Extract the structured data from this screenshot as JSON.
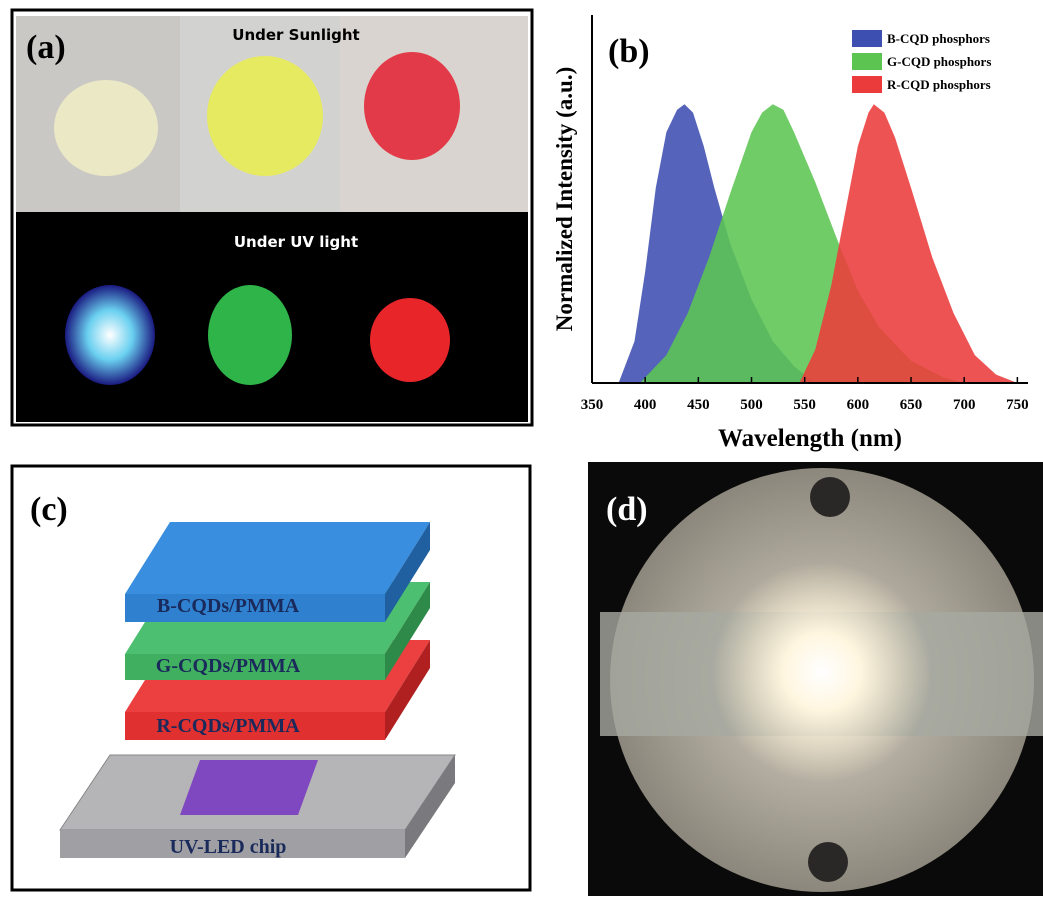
{
  "panel_a": {
    "label": "(a)",
    "top_caption": "Under Sunlight",
    "bottom_caption": "Under UV light"
  },
  "chart_data": {
    "type": "area",
    "label": "(b)",
    "xlabel": "Wavelength (nm)",
    "ylabel": "Normalized Intensity (a.u.)",
    "xlim": [
      350,
      760
    ],
    "xticks": [
      350,
      400,
      450,
      500,
      550,
      600,
      650,
      700,
      750
    ],
    "ylim": [
      0,
      1.32
    ],
    "legend": "upper right",
    "series": [
      {
        "name": "B-CQD phosphors",
        "color": "#3d4fb0",
        "x": [
          375,
          390,
          400,
          410,
          420,
          430,
          437,
          445,
          455,
          465,
          480,
          500,
          520,
          540,
          560
        ],
        "values": [
          0,
          0.15,
          0.4,
          0.7,
          0.9,
          0.98,
          1.0,
          0.97,
          0.85,
          0.7,
          0.5,
          0.3,
          0.15,
          0.06,
          0
        ]
      },
      {
        "name": "G-CQD phosphors",
        "color": "#5cc552",
        "x": [
          395,
          420,
          440,
          460,
          480,
          500,
          510,
          520,
          530,
          540,
          560,
          580,
          600,
          620,
          650,
          680,
          700
        ],
        "values": [
          0,
          0.1,
          0.25,
          0.45,
          0.68,
          0.9,
          0.97,
          1.0,
          0.98,
          0.9,
          0.72,
          0.52,
          0.33,
          0.2,
          0.08,
          0.02,
          0
        ]
      },
      {
        "name": "R-CQD phosphors",
        "color": "#ec3b3b",
        "x": [
          545,
          560,
          575,
          590,
          600,
          610,
          615,
          625,
          635,
          650,
          670,
          690,
          710,
          730,
          750
        ],
        "values": [
          0,
          0.12,
          0.35,
          0.65,
          0.85,
          0.97,
          1.0,
          0.97,
          0.88,
          0.7,
          0.45,
          0.25,
          0.1,
          0.03,
          0
        ]
      }
    ]
  },
  "panel_c": {
    "label": "(c)",
    "layers": [
      "B-CQDs/PMMA",
      "G-CQDs/PMMA",
      "R-CQDs/PMMA",
      "UV-LED chip"
    ]
  },
  "panel_d": {
    "label": "(d)"
  }
}
